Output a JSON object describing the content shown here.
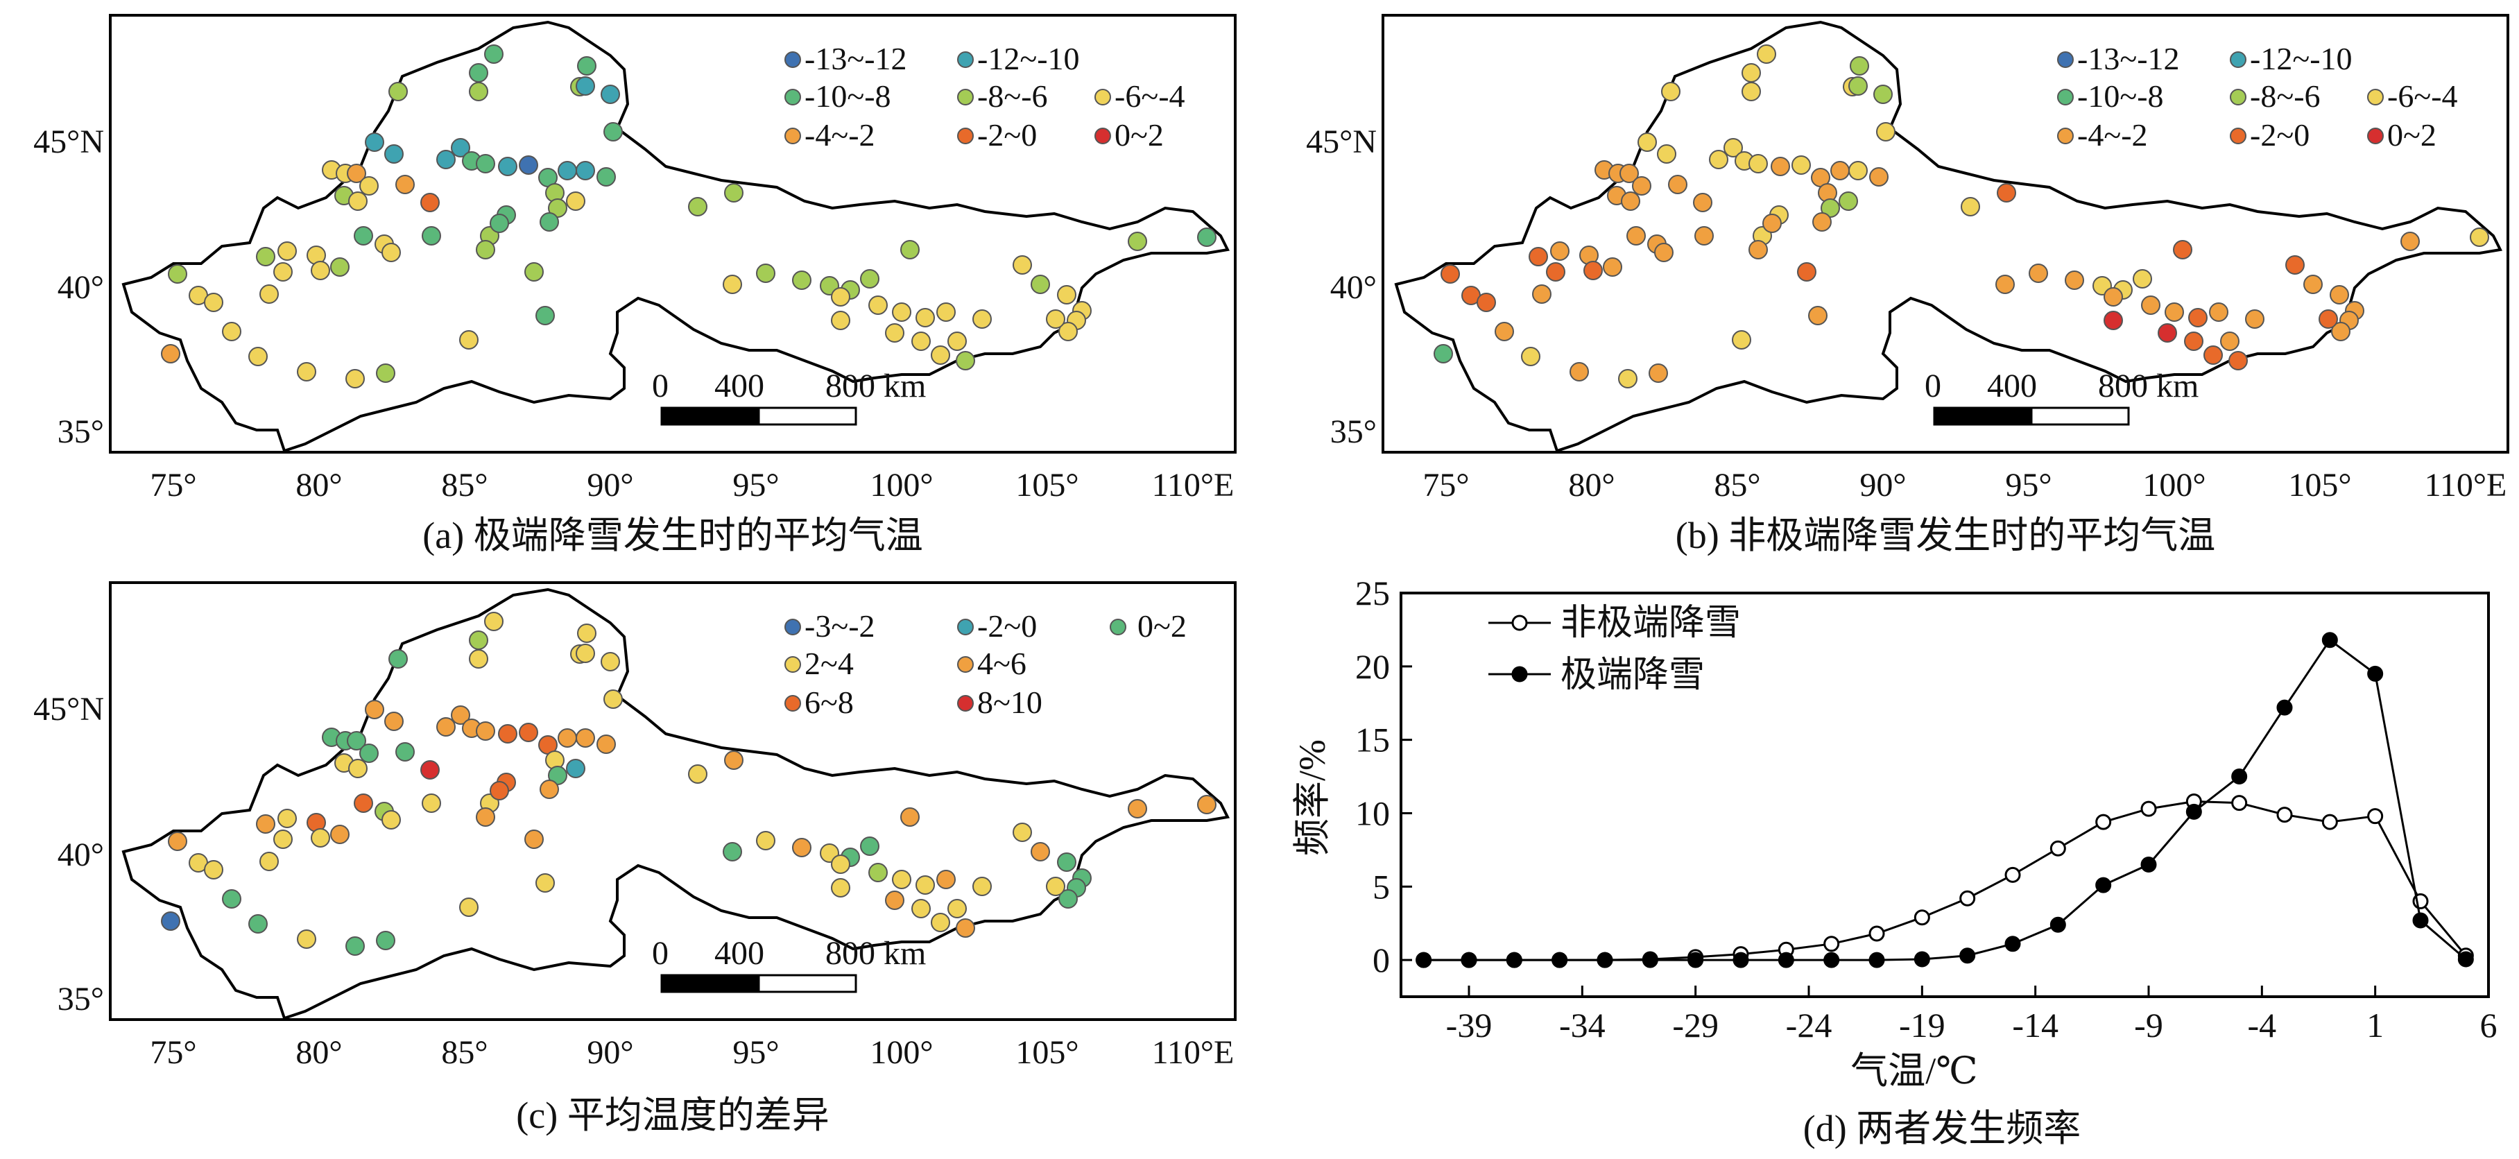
{
  "colors": {
    "c-13_-12": "#3f72b1",
    "c-12_-10": "#3fa3b1",
    "c-10_-8": "#5bb87a",
    "c-8_-6": "#a4cc55",
    "c-6_-4": "#f0d35a",
    "c-4_-2": "#f0a040",
    "c-2_0": "#e86a2a",
    "c0_2": "#d62f2f",
    "d-3_-2": "#3f72b1",
    "d-2_0": "#3fa3b1",
    "d0_2": "#5bb87a",
    "d2_4": "#f0d35a",
    "d4_6": "#f0a040",
    "d6_8": "#e86a2a",
    "d8_10": "#d62f2f"
  },
  "maps": {
    "axis_labels": {
      "x": [
        "75°",
        "80°",
        "85°",
        "90°",
        "95°",
        "100°",
        "105°",
        "110°E"
      ],
      "y": [
        "35°",
        "40°",
        "45°N"
      ]
    },
    "scalebar": {
      "zero": "0",
      "mid": "400",
      "end": "800 km"
    },
    "panel_a": {
      "caption": "(a) 极端降雪发生时的平均气温",
      "legend": [
        "-13~-12",
        "-12~-10",
        "-10~-8",
        "-8~-6",
        "-6~-4",
        "-4~-2",
        "-2~0",
        "0~2"
      ]
    },
    "panel_b": {
      "caption": "(b) 非极端降雪发生时的平均气温",
      "legend": [
        "-13~-12",
        "-12~-10",
        "-10~-8",
        "-8~-6",
        "-6~-4",
        "-4~-2",
        "-2~0",
        "0~2"
      ]
    },
    "panel_c": {
      "caption": "(c) 平均温度的差异",
      "legend": [
        "-3~-2",
        "-2~0",
        "0~2",
        "2~4",
        "4~6",
        "6~8",
        "8~10"
      ]
    }
  },
  "chart_data": {
    "type": "line",
    "caption": "(d) 两者发生频率",
    "xlabel": "气温/℃",
    "ylabel": "频率/%",
    "xlim": [
      -42,
      6
    ],
    "ylim": [
      -2.5,
      25
    ],
    "xticks": [
      -39,
      -34,
      -29,
      -24,
      -19,
      -14,
      -9,
      -4,
      1,
      6
    ],
    "yticks": [
      0,
      5,
      10,
      15,
      20,
      25
    ],
    "x": [
      -41,
      -39,
      -37,
      -35,
      -33,
      -31,
      -29,
      -27,
      -25,
      -23,
      -21,
      -19,
      -17,
      -15,
      -13,
      -11,
      -9,
      -7,
      -5,
      -3,
      -1,
      1,
      3,
      5
    ],
    "series": [
      {
        "name": "非极端降雪",
        "marker": "open",
        "values": [
          0,
          0,
          0,
          0,
          0,
          0.05,
          0.2,
          0.4,
          0.7,
          1.1,
          1.8,
          2.9,
          4.2,
          5.8,
          7.6,
          9.4,
          10.3,
          10.8,
          10.7,
          9.9,
          9.4,
          9.8,
          4.0,
          0.3
        ]
      },
      {
        "name": "极端降雪",
        "marker": "filled",
        "values": [
          0,
          0,
          0,
          0,
          0,
          0,
          0,
          0,
          0,
          0,
          0,
          0.05,
          0.3,
          1.1,
          2.4,
          5.1,
          6.5,
          10.1,
          12.5,
          17.2,
          21.8,
          19.5,
          2.7,
          0.05
        ]
      }
    ]
  }
}
